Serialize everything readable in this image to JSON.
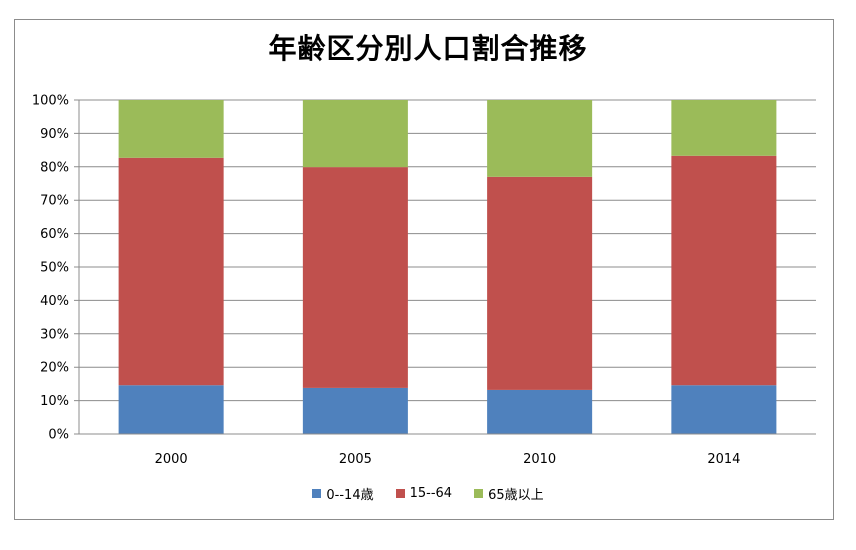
{
  "chart_data": {
    "type": "bar",
    "stacked": true,
    "title": "年齢区分別人口割合推移",
    "categories": [
      "2000",
      "2005",
      "2010",
      "2014"
    ],
    "series": [
      {
        "name": "0--14歳",
        "color": "#4f81bd",
        "values": [
          14.6,
          13.8,
          13.2,
          14.6
        ]
      },
      {
        "name": "15--64",
        "color": "#c0504d",
        "values": [
          68.1,
          66.1,
          63.8,
          68.7
        ]
      },
      {
        "name": "65歳以上",
        "color": "#9bbb59",
        "values": [
          17.3,
          20.1,
          23.0,
          16.7
        ]
      }
    ],
    "ylim": [
      0,
      100
    ],
    "yticks": [
      "0%",
      "10%",
      "20%",
      "30%",
      "40%",
      "50%",
      "60%",
      "70%",
      "80%",
      "90%",
      "100%"
    ],
    "grid": true,
    "legend_position": "bottom"
  }
}
